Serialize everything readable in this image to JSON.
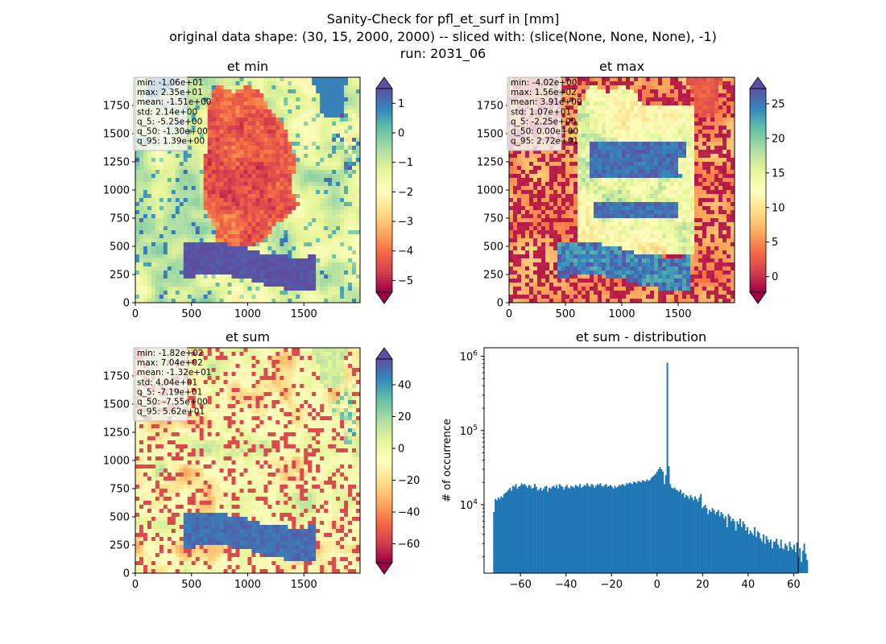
{
  "figure": {
    "title_lines": [
      "Sanity-Check for pfl_et_surf in [mm]",
      "original data shape: (30, 15, 2000, 2000) -- sliced with: (slice(None, None, None), -1)",
      "run: 2031_06"
    ]
  },
  "colors": {
    "hist_bar": "#1f77b4",
    "spectral": [
      "#9e0142",
      "#d53e4f",
      "#f46d43",
      "#fdae61",
      "#fee08b",
      "#ffffbf",
      "#e6f598",
      "#abdda4",
      "#66c2a5",
      "#3288bd",
      "#5e4fa2"
    ]
  },
  "chart_data": [
    {
      "type": "heatmap",
      "title": "et min",
      "cmap": "Spectral",
      "xticks": [
        0,
        500,
        1000,
        1500
      ],
      "yticks": [
        0,
        250,
        500,
        750,
        1000,
        1250,
        1500,
        1750
      ],
      "xlim": [
        0,
        2000
      ],
      "ylim": [
        0,
        2000
      ],
      "colorbar": {
        "ticks": [
          1,
          0,
          -1,
          -2,
          -3,
          -4,
          -5
        ],
        "tick_labels": [
          "1",
          "0",
          "−1",
          "−2",
          "−3",
          "−4",
          "−5"
        ],
        "vmin": -5.4,
        "vmax": 1.5,
        "extend": "both"
      },
      "stats": [
        "min: -1.06e+01",
        "max: 2.35e+01",
        "mean: -1.51e+00",
        "std: 2.14e+00",
        "q_5: -5.25e+00",
        "q_50: -1.30e+00",
        "q_95: 1.39e+00"
      ]
    },
    {
      "type": "heatmap",
      "title": "et max",
      "cmap": "Spectral",
      "xticks": [
        0,
        500,
        1000,
        1500
      ],
      "yticks": [
        0,
        250,
        500,
        750,
        1000,
        1250,
        1500,
        1750
      ],
      "xlim": [
        0,
        2000
      ],
      "ylim": [
        0,
        2000
      ],
      "colorbar": {
        "ticks": [
          25,
          20,
          15,
          10,
          5,
          0
        ],
        "tick_labels": [
          "25",
          "20",
          "15",
          "10",
          "5",
          "0"
        ],
        "vmin": -2.25,
        "vmax": 27.2,
        "extend": "both"
      },
      "stats": [
        "min: -4.02e+00",
        "max: 1.56e+02",
        "mean: 3.91e+00",
        "std: 1.07e+01",
        "q_5: -2.25e+00",
        "q_50: 0.00e+00",
        "q_95: 2.72e+01"
      ]
    },
    {
      "type": "heatmap",
      "title": "et sum",
      "cmap": "Spectral",
      "xticks": [
        0,
        500,
        1000,
        1500
      ],
      "yticks": [
        0,
        250,
        500,
        750,
        1000,
        1250,
        1500,
        1750
      ],
      "xlim": [
        0,
        2000
      ],
      "ylim": [
        0,
        2000
      ],
      "colorbar": {
        "ticks": [
          40,
          20,
          0,
          -20,
          -40,
          -60
        ],
        "tick_labels": [
          "40",
          "20",
          "0",
          "−20",
          "−40",
          "−60"
        ],
        "vmin": -71.9,
        "vmax": 56.2,
        "extend": "both"
      },
      "stats": [
        "min: -1.82e+02",
        "max: 7.04e+02",
        "mean: -1.32e+01",
        "std: 4.04e+01",
        "q_5: -7.19e+01",
        "q_50: -7.55e+00",
        "q_95: 5.62e+01"
      ]
    },
    {
      "type": "bar",
      "title": "et sum - distribution",
      "ylabel": "# of occurrence",
      "yscale": "log",
      "xlim": [
        -76,
        62
      ],
      "ylim": [
        1200,
        1300000
      ],
      "xticks": [
        -60,
        -40,
        -20,
        0,
        20,
        40,
        60
      ],
      "xtick_labels": [
        "−60",
        "−40",
        "−20",
        "0",
        "20",
        "40",
        "60"
      ],
      "yticks": [
        10000,
        100000,
        1000000
      ],
      "ytick_labels": [
        "10^4",
        "10^5",
        "10^6"
      ],
      "bin_start": -72,
      "bin_width": 0.64,
      "values": [
        8000,
        12000,
        11500,
        12500,
        12000,
        13000,
        12500,
        14000,
        14500,
        15000,
        16000,
        17000,
        15500,
        18000,
        17500,
        19000,
        16500,
        17500,
        18000,
        19500,
        18500,
        19000,
        18000,
        17000,
        18500,
        18000,
        16500,
        17000,
        19000,
        17500,
        15500,
        16000,
        17000,
        15500,
        16500,
        17500,
        18000,
        15000,
        17000,
        16500,
        17500,
        18000,
        17000,
        18500,
        16500,
        19000,
        18000,
        17500,
        16000,
        17500,
        18500,
        17000,
        16500,
        18000,
        17500,
        17000,
        18500,
        18000,
        17500,
        19000,
        17000,
        17500,
        18500,
        18000,
        19500,
        18000,
        17500,
        19000,
        18500,
        17000,
        18000,
        19000,
        18500,
        19500,
        18000,
        17500,
        18500,
        19000,
        17500,
        18000,
        18500,
        17500,
        16500,
        18000,
        17000,
        17500,
        18500,
        18000,
        19000,
        18500,
        18000,
        19500,
        19000,
        20000,
        19500,
        19000,
        20500,
        20000,
        19500,
        21000,
        20500,
        20000,
        21500,
        21000,
        20500,
        22000,
        21000,
        21500,
        23000,
        24000,
        25000,
        26000,
        28000,
        30000,
        32000,
        30000,
        28000,
        19000,
        25000,
        820000,
        33000,
        19000,
        17000,
        16500,
        17000,
        16000,
        15500,
        15000,
        16000,
        14000,
        14500,
        12500,
        13500,
        13000,
        12000,
        13500,
        12500,
        11500,
        13000,
        12000,
        11000,
        12500,
        14000,
        9000,
        9500,
        10000,
        9000,
        7500,
        8500,
        8000,
        9000,
        8500,
        7500,
        8000,
        8500,
        7000,
        8000,
        7500,
        6500,
        7000,
        5000,
        7500,
        7000,
        6000,
        6500,
        6000,
        4500,
        6000,
        5500,
        6500,
        5000,
        6000,
        5500,
        4500,
        5000,
        4000,
        4500,
        4200,
        3900,
        5000,
        3700,
        4400,
        4200,
        3500,
        3200,
        4000,
        3000,
        3800,
        3400,
        3100,
        3400,
        2600,
        3200,
        3200,
        3500,
        2900,
        2600,
        3400,
        2600,
        2500,
        3000,
        2800,
        2400,
        3200,
        2700,
        2500,
        2900,
        2300,
        3100,
        2000,
        2600,
        1700,
        2400,
        3000,
        2200,
        1800
      ]
    }
  ]
}
